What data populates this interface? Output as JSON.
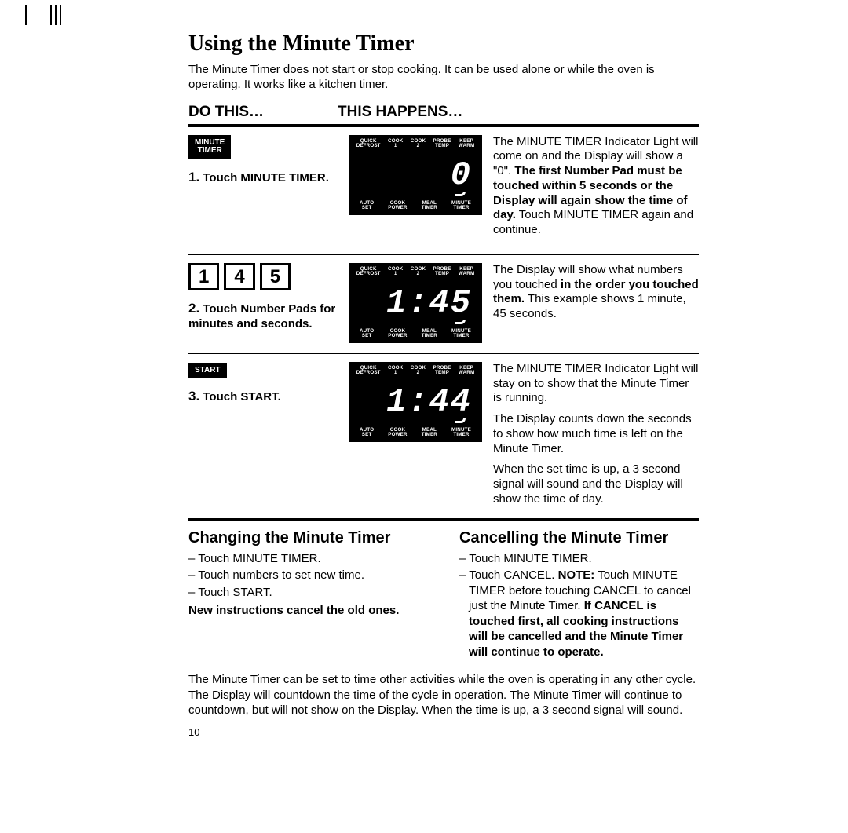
{
  "ticks": true,
  "title": "Using the Minute Timer",
  "intro": "The Minute Timer does not start or stop cooking. It can be used alone or while the oven is operating. It works like a kitchen timer.",
  "headers": {
    "c1": "DO THIS…",
    "c2": "THIS HAPPENS…"
  },
  "display_labels": {
    "top": [
      "QUICK\nDEFROST",
      "COOK\n1",
      "COOK\n2",
      "PROBE\nTEMP",
      "KEEP\nWARM"
    ],
    "bot": [
      "AUTO\nSET",
      "COOK\nPOWER",
      "MEAL\nTIMER",
      "MINUTE\nTIMER"
    ]
  },
  "steps": [
    {
      "button_lines": [
        "MINUTE",
        "TIMER"
      ],
      "button_style": "black",
      "label_num": "1.",
      "label_text": "Touch MINUTE TIMER.",
      "display_digits": "0",
      "result_html": "The MINUTE TIMER Indicator Light will come on and the Display will show a \"0\". <b>The first Number Pad must be touched within 5 seconds or the Display will again show the time of day.</b> Touch MINUTE TIMER again and continue."
    },
    {
      "numbers": [
        "1",
        "4",
        "5"
      ],
      "label_num": "2.",
      "label_text": "Touch Number Pads for minutes and seconds.",
      "display_digits": "1:45",
      "result_html": "The Display will show what numbers you touched <b>in the order you touched them.</b> This example shows 1 minute, 45 seconds."
    },
    {
      "button_lines": [
        "START"
      ],
      "button_style": "black",
      "label_num": "3.",
      "label_text": "Touch START.",
      "display_digits": "1:44",
      "result_html": "The MINUTE TIMER Indicator Light will stay on to show that the Minute Timer is running.|The Display counts down the seconds to show how much time is left on the Minute Timer.|When the set time is up, a 3 second signal will sound and the Display will show the time of day."
    }
  ],
  "changing": {
    "title": "Changing the Minute Timer",
    "items": [
      "– Touch MINUTE TIMER.",
      "– Touch numbers to set new time.",
      "– Touch START."
    ],
    "note": "New instructions cancel the old ones."
  },
  "cancelling": {
    "title": "Cancelling the Minute Timer",
    "items": [
      "– Touch MINUTE TIMER.",
      "– Touch CANCEL. <b>NOTE:</b> Touch MINUTE TIMER before touching CANCEL to cancel just the Minute Timer. <b>If CANCEL is touched first, all cooking instructions will be cancelled and the Minute Timer will continue to operate.</b>"
    ]
  },
  "bottom": "The Minute Timer can be set to time other activities while the oven is operating in any other cycle. The Display will countdown the time of the cycle in operation. The Minute Timer will continue to countdown, but will not show on the Display. When the time is up, a 3 second signal will sound.",
  "page_number": "10"
}
